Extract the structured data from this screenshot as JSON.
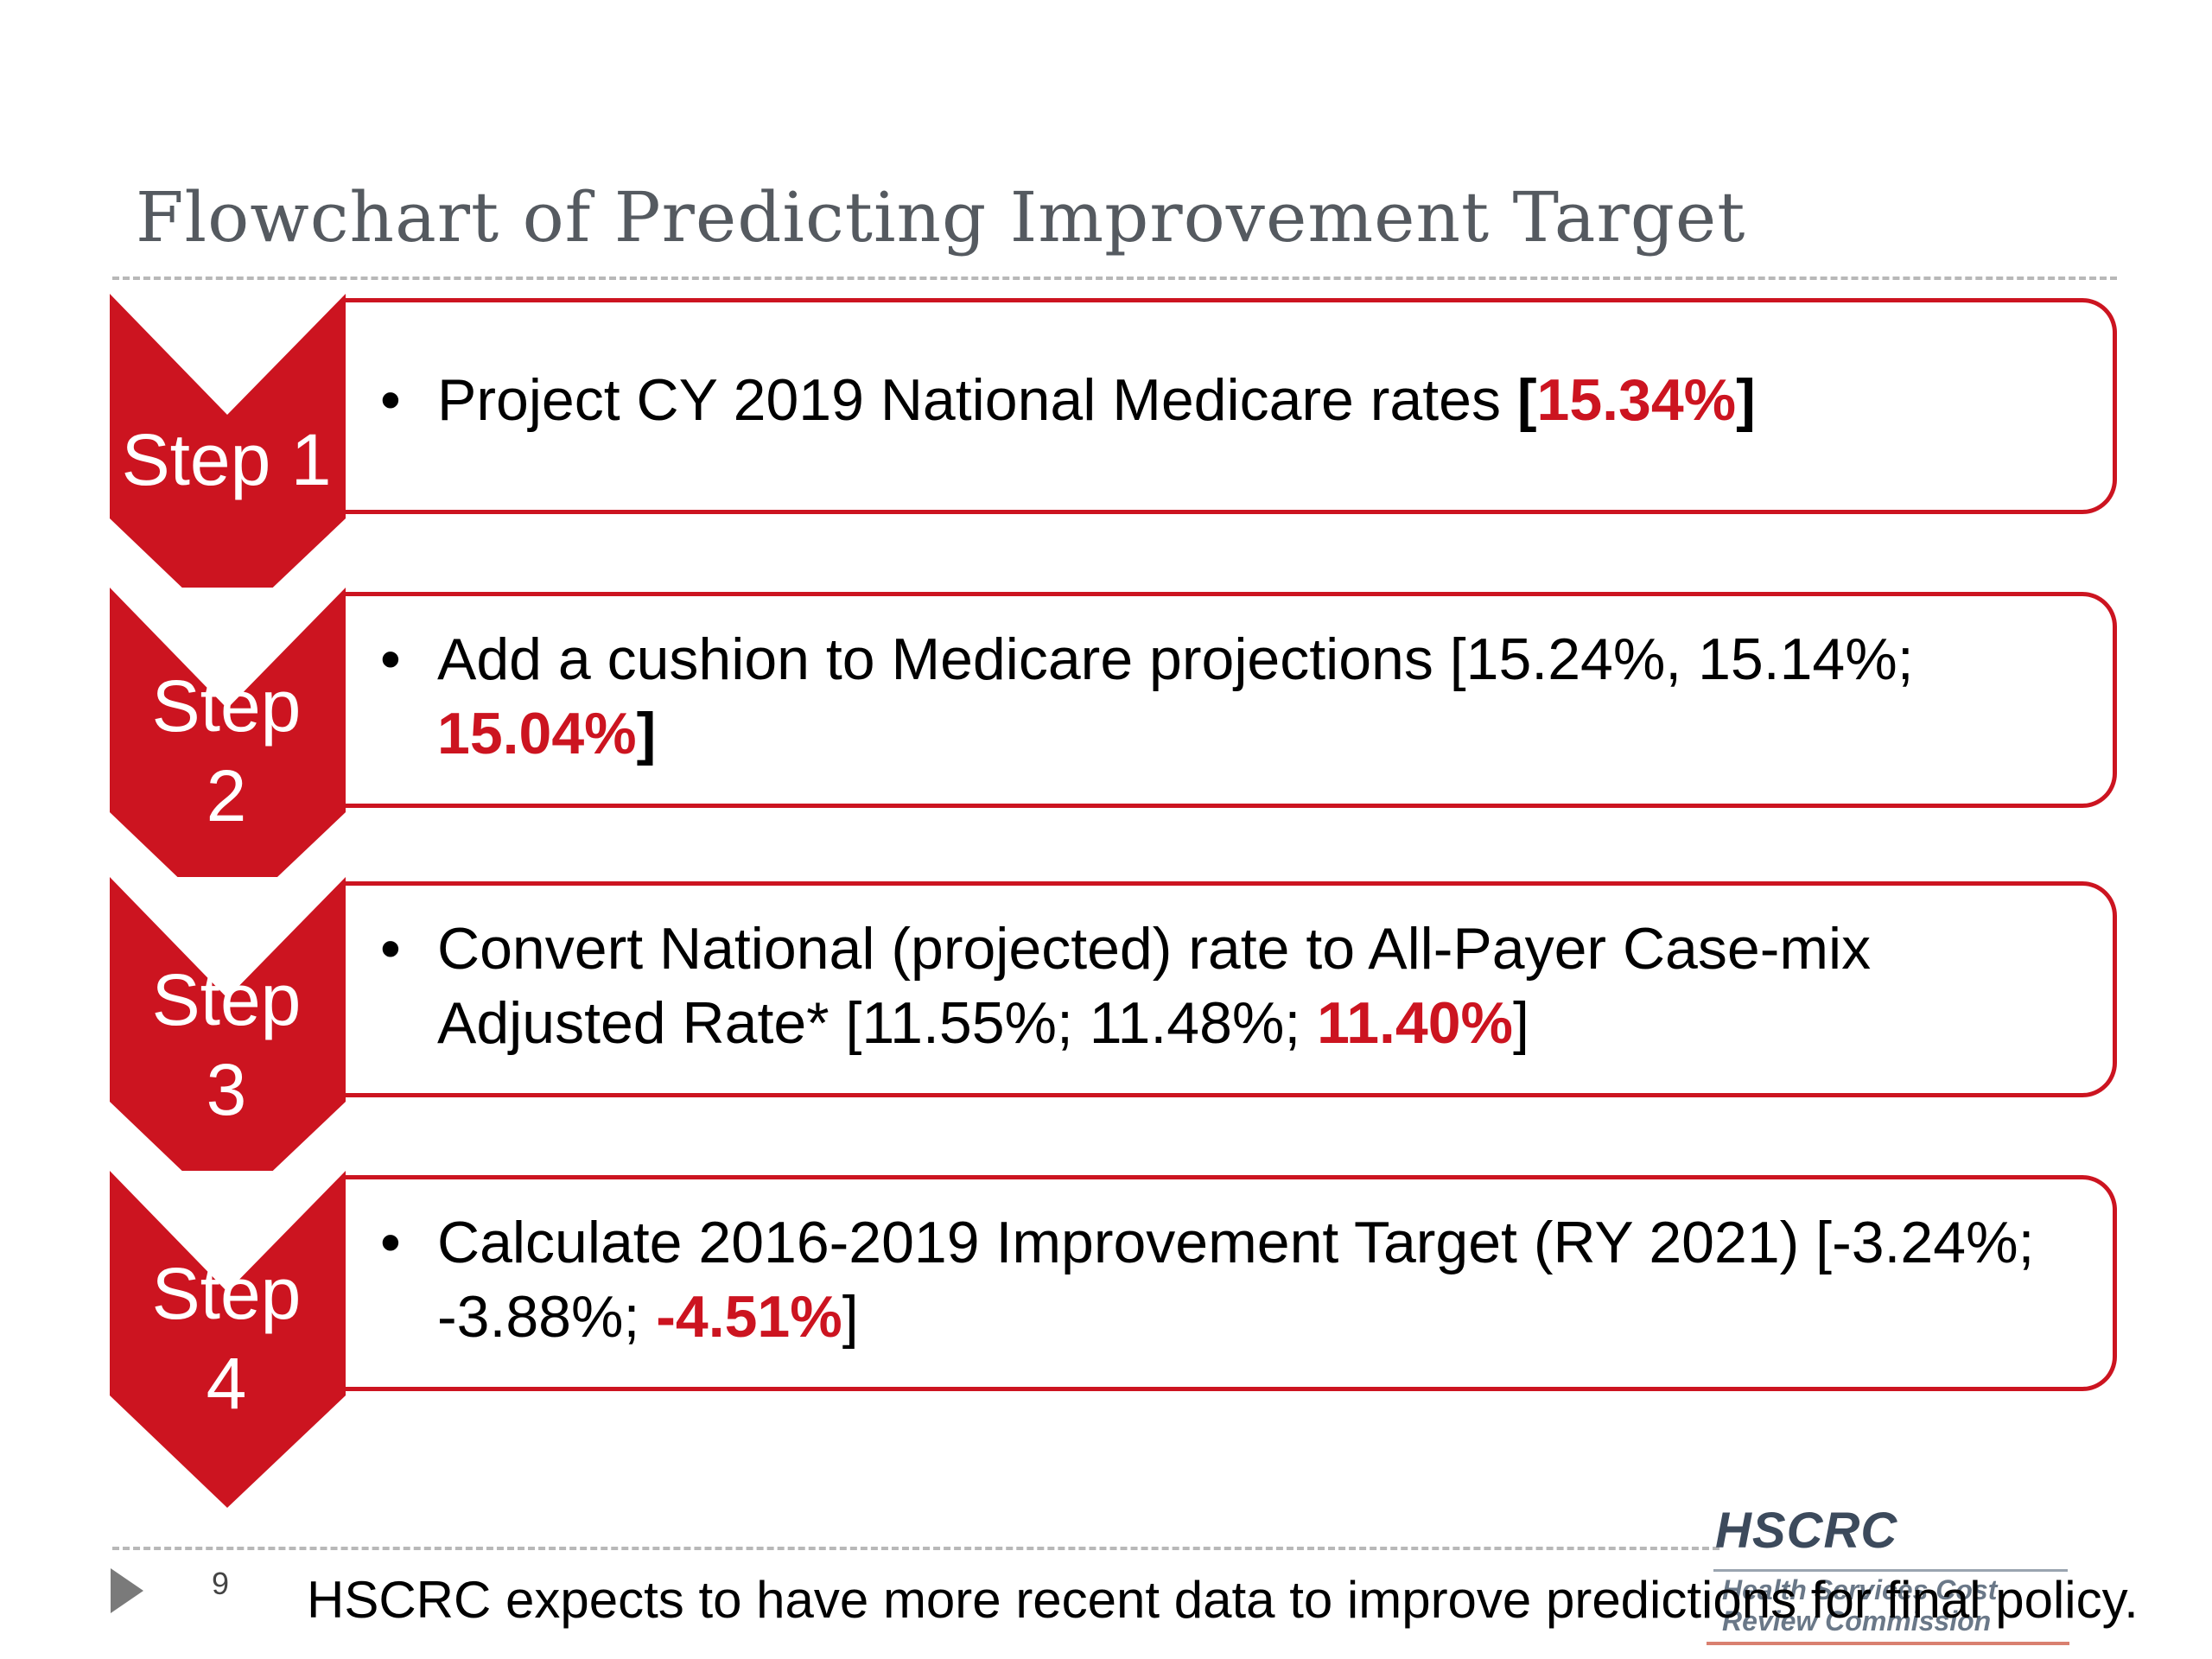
{
  "title": "Flowchart of Predicting Improvement Target",
  "steps": [
    {
      "label_line1": "Step 1",
      "label_line2": "",
      "text_pre": "Project CY 2019 National Medicare rates ",
      "text_bracket_open": "[",
      "highlight": "15.34%",
      "text_post": "]"
    },
    {
      "label_line1": "Step",
      "label_line2": "2",
      "text_pre": "Add a cushion to Medicare projections [15.24%, 15.14%; ",
      "highlight": "15.04%",
      "text_post": "]"
    },
    {
      "label_line1": "Step",
      "label_line2": "3",
      "text_pre": "Convert National (projected) rate to All-Payer Case-mix Adjusted Rate* [11.55%; 11.48%; ",
      "highlight": "11.40%",
      "text_post": "]"
    },
    {
      "label_line1": "Step",
      "label_line2": "4",
      "text_pre": "Calculate 2016-2019 Improvement Target (RY 2021) [-3.24%; -3.88%; ",
      "highlight": "-4.51%",
      "text_post": "]"
    }
  ],
  "bullet_char": "•",
  "footer": {
    "page_number": "9",
    "note": "HSCRC expects to have more recent data to improve predictions for final policy."
  },
  "logo": {
    "name": "HSCRC",
    "subtitle_line1": "Health Services Cost",
    "subtitle_line2": "Review Commission"
  },
  "colors": {
    "accent": "#cc1420",
    "title": "#555a60"
  }
}
